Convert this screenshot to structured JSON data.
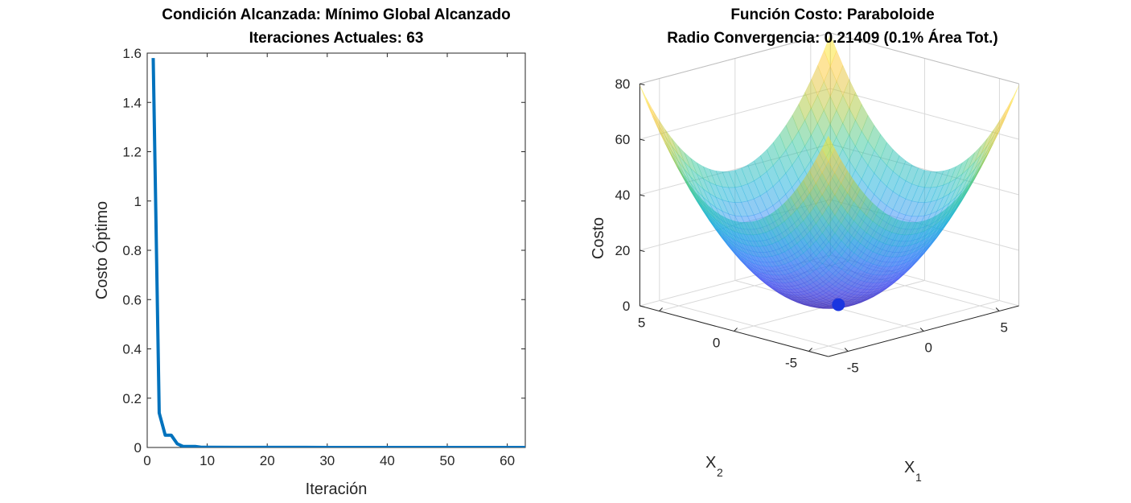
{
  "chart_data": [
    {
      "type": "line",
      "title": [
        "Condición Alcanzada: Mínimo Global Alcanzado",
        "Iteraciones Actuales: 63"
      ],
      "xlabel": "Iteración",
      "ylabel": "Costo Óptimo",
      "xlim": [
        0,
        63
      ],
      "ylim": [
        0,
        1.6
      ],
      "xticks": [
        0,
        10,
        20,
        30,
        40,
        50,
        60
      ],
      "yticks": [
        0,
        0.2,
        0.4,
        0.6,
        0.8,
        1,
        1.2,
        1.4,
        1.6
      ],
      "ytick_labels": [
        "0",
        "0.2",
        "0.4",
        "0.6",
        "0.8",
        "1",
        "1.2",
        "1.4",
        "1.6"
      ],
      "grid": false,
      "series": [
        {
          "color": "#0072BD",
          "x": [
            1,
            2,
            3,
            4,
            5,
            6,
            7,
            8,
            9,
            10,
            15,
            20,
            30,
            40,
            50,
            63
          ],
          "y": [
            1.58,
            0.14,
            0.05,
            0.05,
            0.015,
            0.004,
            0.004,
            0.004,
            0.001,
            0.001,
            0.0005,
            0.0003,
            0.0002,
            0.0001,
            0.0001,
            0.0001
          ]
        }
      ]
    },
    {
      "type": "surface",
      "title": [
        "Función Costo: Paraboloide",
        "Radio Convergencia: 0.21409 (0.1% Área Tot.)"
      ],
      "xlabel": "X",
      "xlabel_sub": "1",
      "ylabel": "X",
      "ylabel_sub": "2",
      "zlabel": "Costo",
      "xlim": [
        -6.3,
        6.3
      ],
      "ylim": [
        -6.3,
        6.3
      ],
      "zlim": [
        0,
        80
      ],
      "xticks": [
        -5,
        0,
        5
      ],
      "yticks": [
        -5,
        0,
        5
      ],
      "zticks": [
        0,
        20,
        40,
        60,
        80
      ],
      "function": "x1^2 + x2^2",
      "grid": true,
      "colormap": "parula",
      "opacity": 0.5,
      "minimum_marker": {
        "x1": 0,
        "x2": 0,
        "z": 0,
        "color": "#1a35e0"
      }
    }
  ]
}
